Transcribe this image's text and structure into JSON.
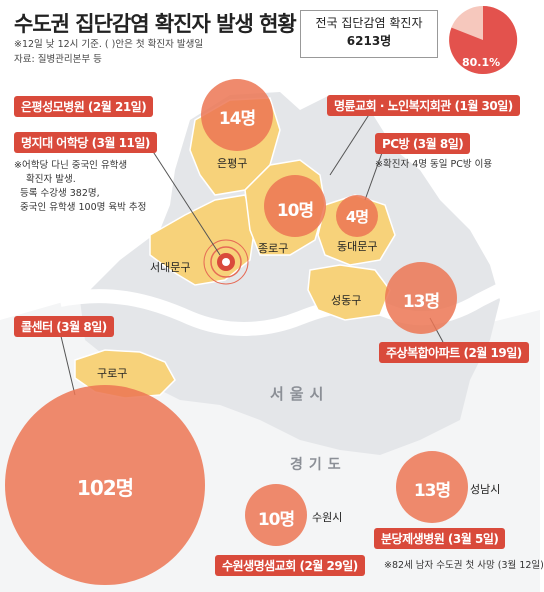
{
  "title": "수도권 집단감염 확진자 발생 현황",
  "notes": [
    "※12일 낮 12시 기준. ( )안은 첫 확진자 발생일",
    "자료: 질병관리본부 등"
  ],
  "total": {
    "label": "전국 집단감염 확진자",
    "value": "6213명",
    "percent_label": "80.1%",
    "percent": 80.1
  },
  "regions": {
    "seoul": "서울시",
    "gyeonggi": "경기도"
  },
  "districts": {
    "eunpyeong": "은평구",
    "jongno": "종로구",
    "dongdaemun": "동대문구",
    "seodaemun": "서대문구",
    "seongdong": "성동구",
    "guro": "구로구",
    "suwon": "수원시",
    "seongnam": "성남시"
  },
  "clusters": [
    {
      "id": "eunpyeong-hospital",
      "label": "은평성모병원 (2월 21일)",
      "count": "14명"
    },
    {
      "id": "myeongji-academy",
      "label": "명지대 어학당 (3월 11일)",
      "count": ""
    },
    {
      "id": "church",
      "label": "명륜교회 · 노인복지회관 (1월 30일)",
      "count": "10명"
    },
    {
      "id": "pc-bang",
      "label": "PC방 (3월 8일)",
      "count": "4명"
    },
    {
      "id": "apartment",
      "label": "주상복합아파트 (2월 19일)",
      "count": "13명"
    },
    {
      "id": "callcenter",
      "label": "콜센터 (3월 8일)",
      "count": "102명"
    },
    {
      "id": "suwon-church",
      "label": "수원생명샘교회 (2월 29일)",
      "count": "10명"
    },
    {
      "id": "bundang-hospital",
      "label": "분당제생병원 (3월 5일)",
      "count": "13명"
    }
  ],
  "myeongji_note": [
    "※어학당 다닌 중국인 유학생",
    "확진자 발생.",
    "등록 수강생 382명,",
    "중국인 유학생 100명 육박 추정"
  ],
  "pc_note": "※확진자 4명 동일 PC방 이용",
  "bundang_note": "※82세 남자 수도권 첫 사망 (3월 12일)",
  "colors": {
    "accent": "#d94a3b",
    "circle": "#ec7654",
    "district": "#f7d27a",
    "city": "#e4e6e9",
    "river": "#ffffff"
  }
}
